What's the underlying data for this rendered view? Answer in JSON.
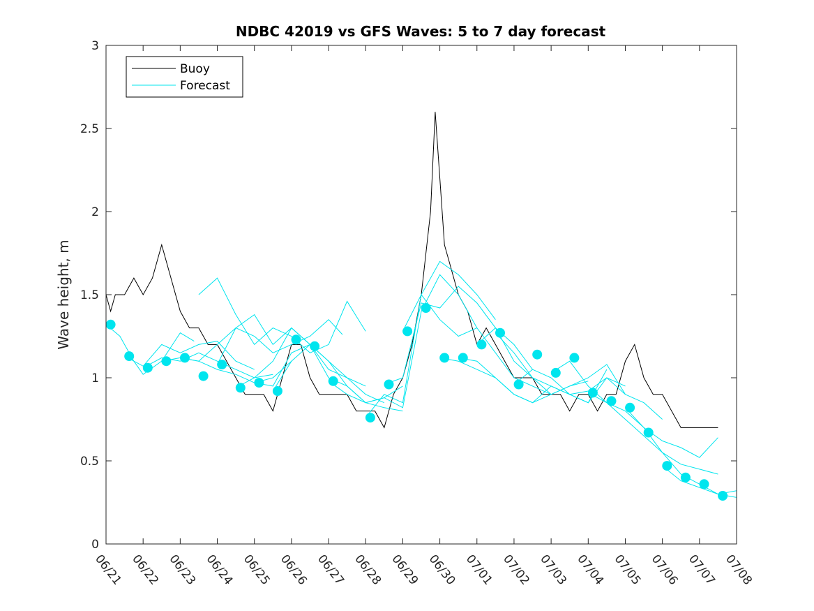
{
  "chart_data": {
    "type": "line",
    "title": "NDBC 42019 vs GFS Waves: 5 to 7 day forecast",
    "xlabel": "",
    "ylabel": "Wave height, m",
    "ylim": [
      0,
      3
    ],
    "yticks": [
      "0",
      "0.5",
      "1",
      "1.5",
      "2",
      "2.5",
      "3"
    ],
    "x_axis": {
      "unit": "date (month/day, 2025)",
      "range": [
        "06/21",
        "07/08"
      ],
      "tick_labels": [
        "06/21",
        "06/22",
        "06/23",
        "06/24",
        "06/25",
        "06/26",
        "06/27",
        "06/28",
        "06/29",
        "06/30",
        "07/01",
        "07/02",
        "07/03",
        "07/04",
        "07/05",
        "07/06",
        "07/07",
        "07/08"
      ]
    },
    "grid": false,
    "legend": {
      "placement": "top-left",
      "entries": [
        "Buoy",
        "Forecast"
      ]
    },
    "colors": {
      "buoy": "#000000",
      "forecast": "#00e5ee"
    },
    "series": [
      {
        "name": "Buoy",
        "style": "black-line",
        "x": [
          "06/21 00:00",
          "06/21 03:00",
          "06/21 06:00",
          "06/21 12:00",
          "06/21 18:00",
          "06/22 00:00",
          "06/22 06:00",
          "06/22 12:00",
          "06/22 18:00",
          "06/23 00:00",
          "06/23 06:00",
          "06/23 12:00",
          "06/23 18:00",
          "06/24 00:00",
          "06/24 06:00",
          "06/24 12:00",
          "06/24 18:00",
          "06/25 00:00",
          "06/25 06:00",
          "06/25 12:00",
          "06/25 18:00",
          "06/26 00:00",
          "06/26 06:00",
          "06/26 12:00",
          "06/26 18:00",
          "06/27 00:00",
          "06/27 06:00",
          "06/27 12:00",
          "06/27 18:00",
          "06/28 00:00",
          "06/28 06:00",
          "06/28 12:00",
          "06/28 18:00",
          "06/29 00:00",
          "06/29 06:00",
          "06/29 12:00",
          "06/29 18:00",
          "06/29 21:00",
          "06/30 00:00",
          "06/30 03:00",
          "06/30 06:00",
          "06/30 12:00",
          "06/30 18:00",
          "07/01 00:00",
          "07/01 06:00",
          "07/01 12:00",
          "07/01 18:00",
          "07/02 00:00",
          "07/02 06:00",
          "07/02 12:00",
          "07/02 18:00",
          "07/03 00:00",
          "07/03 06:00",
          "07/03 12:00",
          "07/03 18:00",
          "07/04 00:00",
          "07/04 06:00",
          "07/04 12:00",
          "07/04 18:00",
          "07/05 00:00",
          "07/05 06:00",
          "07/05 12:00",
          "07/05 18:00",
          "07/06 00:00",
          "07/06 06:00",
          "07/06 12:00",
          "07/06 18:00",
          "07/07 00:00",
          "07/07 06:00",
          "07/07 12:00"
        ],
        "y": [
          1.5,
          1.4,
          1.5,
          1.5,
          1.6,
          1.5,
          1.6,
          1.8,
          1.6,
          1.4,
          1.3,
          1.3,
          1.2,
          1.2,
          1.1,
          1.0,
          0.9,
          0.9,
          0.9,
          0.8,
          1.0,
          1.2,
          1.2,
          1.0,
          0.9,
          0.9,
          0.9,
          0.9,
          0.8,
          0.8,
          0.8,
          0.7,
          0.9,
          1.0,
          1.2,
          1.5,
          2.0,
          2.6,
          2.2,
          1.8,
          1.7,
          1.5,
          1.4,
          1.2,
          1.3,
          1.2,
          1.1,
          1.0,
          1.0,
          1.0,
          0.9,
          0.9,
          0.9,
          0.8,
          0.9,
          0.9,
          0.8,
          0.9,
          0.9,
          1.1,
          1.2,
          1.0,
          0.9,
          0.9,
          0.8,
          0.7,
          0.7,
          0.7,
          0.7,
          0.7
        ]
      },
      {
        "name": "Forecast",
        "style": "cyan-dots",
        "x": [
          "06/21 03:00",
          "06/21 15:00",
          "06/22 03:00",
          "06/22 15:00",
          "06/23 03:00",
          "06/23 15:00",
          "06/24 03:00",
          "06/24 15:00",
          "06/25 03:00",
          "06/25 15:00",
          "06/26 03:00",
          "06/26 15:00",
          "06/27 03:00",
          "06/28 03:00",
          "06/28 15:00",
          "06/29 03:00",
          "06/29 15:00",
          "06/30 03:00",
          "06/30 15:00",
          "07/01 03:00",
          "07/01 15:00",
          "07/02 03:00",
          "07/02 15:00",
          "07/03 03:00",
          "07/03 15:00",
          "07/04 03:00",
          "07/04 15:00",
          "07/05 03:00",
          "07/05 15:00",
          "07/06 03:00",
          "07/06 15:00",
          "07/07 03:00",
          "07/07 15:00"
        ],
        "y": [
          1.32,
          1.13,
          1.06,
          1.1,
          1.12,
          1.01,
          1.08,
          0.94,
          0.97,
          0.92,
          1.23,
          1.19,
          0.98,
          0.76,
          0.96,
          1.28,
          1.42,
          1.12,
          1.12,
          1.2,
          1.27,
          0.96,
          1.14,
          1.03,
          1.12,
          0.91,
          0.86,
          0.82,
          0.67,
          0.47,
          0.4,
          0.36,
          0.29
        ]
      },
      {
        "name": "",
        "style": "cyan-line",
        "x": [
          "06/21 00:00",
          "06/21 09:00",
          "06/21 18:00",
          "06/22 00:00",
          "06/22 12:00",
          "06/23 00:00",
          "06/23 09:00"
        ],
        "y": [
          1.32,
          1.25,
          1.1,
          1.02,
          1.1,
          1.27,
          1.22
        ]
      },
      {
        "name": "",
        "style": "cyan-line",
        "x": [
          "06/21 12:00",
          "06/22 00:00",
          "06/22 12:00",
          "06/23 00:00",
          "06/23 12:00",
          "06/24 00:00",
          "06/24 12:00",
          "06/25 00:00"
        ],
        "y": [
          1.13,
          1.07,
          1.2,
          1.15,
          1.2,
          1.22,
          1.1,
          1.05
        ]
      },
      {
        "name": "",
        "style": "cyan-line",
        "x": [
          "06/22 00:00",
          "06/22 12:00",
          "06/23 00:00",
          "06/23 12:00",
          "06/24 00:00",
          "06/24 12:00",
          "06/25 00:00",
          "06/25 12:00"
        ],
        "y": [
          1.06,
          1.12,
          1.1,
          1.15,
          1.1,
          1.05,
          1.0,
          1.02
        ]
      },
      {
        "name": "",
        "style": "cyan-line",
        "x": [
          "06/22 12:00",
          "06/23 00:00",
          "06/23 12:00",
          "06/24 00:00",
          "06/24 12:00",
          "06/25 00:00",
          "06/25 12:00",
          "06/26 00:00"
        ],
        "y": [
          1.1,
          1.12,
          1.1,
          1.05,
          1.02,
          0.97,
          1.0,
          1.1
        ]
      },
      {
        "name": "",
        "style": "cyan-line",
        "x": [
          "06/23 00:00",
          "06/23 12:00",
          "06/24 00:00",
          "06/24 12:00",
          "06/25 00:00",
          "06/25 12:00",
          "06/26 00:00",
          "06/26 12:00",
          "06/27 00:00",
          "06/27 09:00"
        ],
        "y": [
          1.12,
          1.1,
          1.2,
          1.3,
          1.25,
          1.15,
          1.2,
          1.25,
          1.35,
          1.26
        ]
      },
      {
        "name": "",
        "style": "cyan-line",
        "x": [
          "06/23 12:00",
          "06/24 00:00",
          "06/24 12:00",
          "06/25 00:00",
          "06/25 12:00",
          "06/26 00:00",
          "06/26 12:00",
          "06/27 00:00",
          "06/27 12:00",
          "06/28 00:00"
        ],
        "y": [
          1.5,
          1.6,
          1.38,
          1.2,
          1.3,
          1.25,
          1.15,
          1.2,
          1.46,
          1.28
        ]
      },
      {
        "name": "",
        "style": "cyan-line",
        "x": [
          "06/24 00:00",
          "06/24 12:00",
          "06/25 00:00",
          "06/25 12:00",
          "06/26 00:00",
          "06/26 12:00",
          "06/27 00:00",
          "06/27 12:00",
          "06/28 00:00"
        ],
        "y": [
          1.08,
          1.3,
          1.38,
          1.2,
          1.3,
          1.2,
          1.1,
          1.0,
          0.95
        ]
      },
      {
        "name": "",
        "style": "cyan-line",
        "x": [
          "06/24 12:00",
          "06/25 00:00",
          "06/25 12:00",
          "06/26 00:00",
          "06/26 12:00",
          "06/27 00:00",
          "06/27 12:00",
          "06/28 00:00",
          "06/28 12:00"
        ],
        "y": [
          0.94,
          1.0,
          1.1,
          1.3,
          1.2,
          1.05,
          1.0,
          0.9,
          0.85
        ]
      },
      {
        "name": "",
        "style": "cyan-line",
        "x": [
          "06/25 00:00",
          "06/25 12:00",
          "06/26 00:00",
          "06/26 12:00",
          "06/27 00:00",
          "06/27 12:00",
          "06/28 00:00",
          "06/28 12:00",
          "06/29 00:00"
        ],
        "y": [
          0.97,
          0.95,
          1.15,
          1.2,
          1.1,
          0.95,
          0.85,
          0.88,
          0.95
        ]
      },
      {
        "name": "",
        "style": "cyan-line",
        "x": [
          "06/25 12:00",
          "06/26 00:00",
          "06/26 12:00",
          "06/27 00:00",
          "06/27 12:00",
          "06/28 00:00",
          "06/28 12:00",
          "06/29 00:00"
        ],
        "y": [
          0.92,
          1.1,
          1.2,
          1.0,
          0.95,
          0.85,
          0.82,
          0.8
        ]
      },
      {
        "name": "",
        "style": "cyan-line",
        "x": [
          "06/27 00:00",
          "06/27 12:00",
          "06/28 00:00",
          "06/28 12:00",
          "06/29 00:00",
          "06/29 12:00",
          "06/30 00:00",
          "06/30 12:00",
          "07/01 00:00"
        ],
        "y": [
          0.98,
          0.9,
          0.85,
          0.88,
          0.82,
          1.4,
          1.62,
          1.5,
          1.3
        ]
      },
      {
        "name": "",
        "style": "cyan-line",
        "x": [
          "06/28 00:00",
          "06/28 12:00",
          "06/29 00:00",
          "06/29 12:00",
          "06/30 00:00",
          "06/30 12:00",
          "07/01 00:00",
          "07/01 12:00"
        ],
        "y": [
          0.76,
          0.9,
          0.85,
          1.5,
          1.7,
          1.62,
          1.5,
          1.35
        ]
      },
      {
        "name": "",
        "style": "cyan-line",
        "x": [
          "06/28 12:00",
          "06/29 00:00",
          "06/29 12:00",
          "06/30 00:00",
          "06/30 12:00",
          "07/01 00:00",
          "07/01 12:00",
          "07/02 00:00",
          "07/02 12:00"
        ],
        "y": [
          0.96,
          1.0,
          1.45,
          1.42,
          1.55,
          1.45,
          1.3,
          1.2,
          1.05
        ]
      },
      {
        "name": "",
        "style": "cyan-line",
        "x": [
          "06/29 00:00",
          "06/29 12:00",
          "06/30 00:00",
          "06/30 12:00",
          "07/01 00:00",
          "07/01 12:00",
          "07/02 00:00",
          "07/02 12:00",
          "07/03 00:00"
        ],
        "y": [
          1.28,
          1.5,
          1.35,
          1.25,
          1.3,
          1.15,
          1.0,
          0.95,
          0.9
        ]
      },
      {
        "name": "",
        "style": "cyan-line",
        "x": [
          "06/30 00:00",
          "06/30 12:00",
          "07/01 00:00",
          "07/01 12:00",
          "07/02 00:00",
          "07/02 12:00",
          "07/03 00:00",
          "07/03 12:00",
          "07/04 00:00"
        ],
        "y": [
          1.12,
          1.1,
          1.05,
          1.0,
          0.9,
          0.85,
          0.9,
          0.95,
          0.98
        ]
      },
      {
        "name": "",
        "style": "cyan-line",
        "x": [
          "06/30 12:00",
          "07/01 00:00",
          "07/01 12:00",
          "07/02 00:00",
          "07/02 12:00",
          "07/03 00:00",
          "07/03 12:00",
          "07/04 00:00",
          "07/04 12:00"
        ],
        "y": [
          1.12,
          1.1,
          1.0,
          0.9,
          0.85,
          0.95,
          0.9,
          0.85,
          1.05
        ]
      },
      {
        "name": "",
        "style": "cyan-line",
        "x": [
          "07/01 00:00",
          "07/01 12:00",
          "07/02 00:00",
          "07/02 12:00",
          "07/03 00:00",
          "07/03 12:00",
          "07/04 00:00",
          "07/04 12:00",
          "07/05 00:00"
        ],
        "y": [
          1.2,
          1.3,
          1.1,
          1.0,
          0.95,
          0.9,
          0.92,
          1.0,
          0.95
        ]
      },
      {
        "name": "",
        "style": "cyan-line",
        "x": [
          "07/01 12:00",
          "07/02 00:00",
          "07/02 12:00",
          "07/03 00:00",
          "07/03 12:00",
          "07/04 00:00",
          "07/04 12:00",
          "07/05 00:00"
        ],
        "y": [
          1.27,
          1.15,
          1.0,
          0.9,
          0.95,
          1.0,
          1.08,
          0.9
        ]
      },
      {
        "name": "",
        "style": "cyan-line",
        "x": [
          "07/02 00:00",
          "07/02 12:00",
          "07/03 00:00",
          "07/03 12:00",
          "07/04 00:00",
          "07/04 12:00",
          "07/05 00:00",
          "07/05 12:00",
          "07/06 00:00"
        ],
        "y": [
          0.96,
          1.05,
          1.0,
          0.9,
          0.85,
          1.0,
          0.9,
          0.85,
          0.75
        ]
      },
      {
        "name": "",
        "style": "cyan-line",
        "x": [
          "07/03 00:00",
          "07/03 12:00",
          "07/04 00:00",
          "07/04 12:00",
          "07/05 00:00",
          "07/05 12:00",
          "07/06 00:00",
          "07/06 12:00",
          "07/07 00:00",
          "07/07 12:00"
        ],
        "y": [
          1.03,
          1.1,
          0.95,
          0.85,
          0.8,
          0.7,
          0.62,
          0.58,
          0.52,
          0.64
        ]
      },
      {
        "name": "",
        "style": "cyan-line",
        "x": [
          "07/04 00:00",
          "07/04 12:00",
          "07/05 00:00",
          "07/05 12:00",
          "07/06 00:00",
          "07/06 12:00",
          "07/07 00:00",
          "07/07 12:00"
        ],
        "y": [
          0.91,
          0.85,
          0.75,
          0.65,
          0.55,
          0.48,
          0.45,
          0.42
        ]
      },
      {
        "name": "",
        "style": "cyan-line",
        "x": [
          "07/05 00:00",
          "07/05 12:00",
          "07/06 00:00",
          "07/06 12:00",
          "07/07 00:00",
          "07/07 12:00",
          "07/08 00:00"
        ],
        "y": [
          0.82,
          0.7,
          0.55,
          0.42,
          0.36,
          0.3,
          0.32
        ]
      },
      {
        "name": "",
        "style": "cyan-line",
        "x": [
          "07/06 00:00",
          "07/06 12:00",
          "07/07 00:00",
          "07/07 12:00",
          "07/08 00:00"
        ],
        "y": [
          0.47,
          0.38,
          0.34,
          0.3,
          0.28
        ]
      }
    ]
  }
}
